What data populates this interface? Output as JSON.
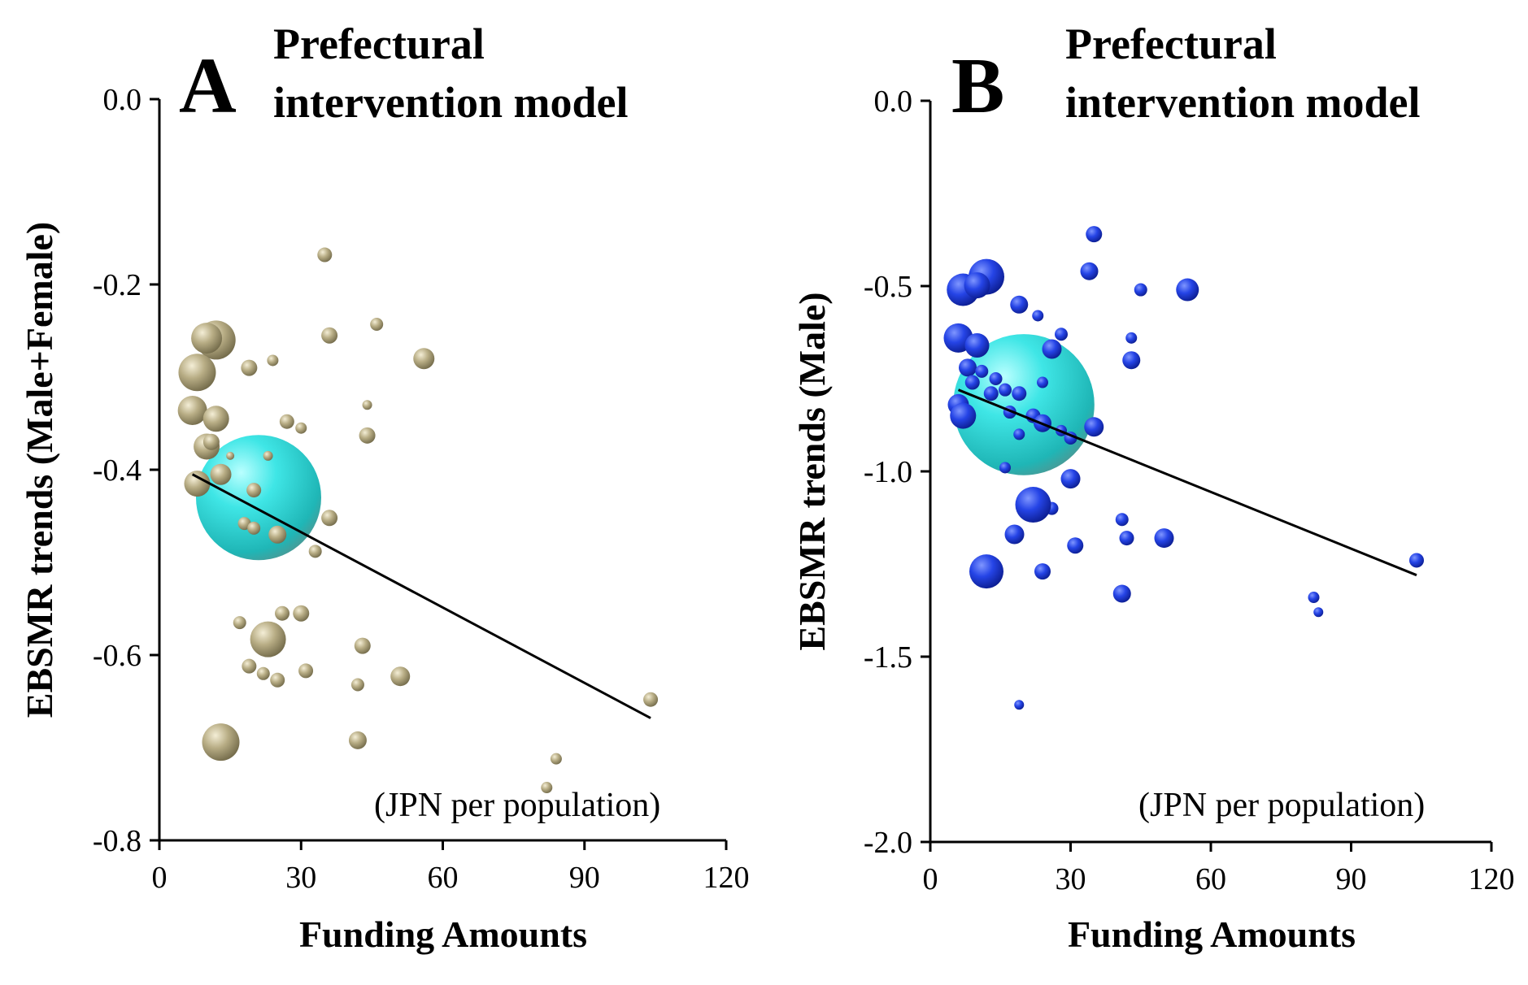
{
  "chart_data": [
    {
      "type": "scatter",
      "panel": "A",
      "title": "Prefectural intervention model",
      "title_lines": [
        "Prefectural",
        "intervention model"
      ],
      "xlabel": "Funding Amounts",
      "ylabel": "EBSMR trends (Male+Female)",
      "unit_note": "(JPN per population)",
      "xlim": [
        0,
        120
      ],
      "ylim": [
        -0.8,
        0.0
      ],
      "xticks": [
        0,
        30,
        60,
        90,
        120
      ],
      "yticks": [
        -0.8,
        -0.6,
        -0.4,
        -0.2,
        0.0
      ],
      "ytick_labels": [
        "-0.8",
        "-0.6",
        "-0.4",
        "-0.2",
        "0.0"
      ],
      "marker_color": "#b5aa82",
      "highlight_color": "#39e0e0",
      "regression": {
        "x": [
          7,
          104
        ],
        "y": [
          -0.405,
          -0.668
        ]
      },
      "highlight": {
        "x": 21,
        "y": -0.43,
        "size": 55
      },
      "points": [
        {
          "x": 12,
          "y": -0.26,
          "size": 24
        },
        {
          "x": 10,
          "y": -0.258,
          "size": 19
        },
        {
          "x": 8,
          "y": -0.295,
          "size": 23
        },
        {
          "x": 7,
          "y": -0.336,
          "size": 18
        },
        {
          "x": 12,
          "y": -0.345,
          "size": 16
        },
        {
          "x": 10,
          "y": -0.375,
          "size": 16
        },
        {
          "x": 8,
          "y": -0.415,
          "size": 16
        },
        {
          "x": 13,
          "y": -0.405,
          "size": 13
        },
        {
          "x": 11,
          "y": -0.37,
          "size": 10
        },
        {
          "x": 19,
          "y": -0.29,
          "size": 10
        },
        {
          "x": 24,
          "y": -0.282,
          "size": 7
        },
        {
          "x": 15,
          "y": -0.385,
          "size": 5
        },
        {
          "x": 23,
          "y": -0.385,
          "size": 6
        },
        {
          "x": 27,
          "y": -0.348,
          "size": 9
        },
        {
          "x": 30,
          "y": -0.355,
          "size": 7
        },
        {
          "x": 20,
          "y": -0.422,
          "size": 9
        },
        {
          "x": 18,
          "y": -0.458,
          "size": 8
        },
        {
          "x": 20,
          "y": -0.463,
          "size": 8
        },
        {
          "x": 25,
          "y": -0.47,
          "size": 11
        },
        {
          "x": 33,
          "y": -0.488,
          "size": 8
        },
        {
          "x": 36,
          "y": -0.452,
          "size": 10
        },
        {
          "x": 35,
          "y": -0.168,
          "size": 9
        },
        {
          "x": 36,
          "y": -0.255,
          "size": 10
        },
        {
          "x": 46,
          "y": -0.243,
          "size": 8
        },
        {
          "x": 56,
          "y": -0.28,
          "size": 13
        },
        {
          "x": 44,
          "y": -0.33,
          "size": 6
        },
        {
          "x": 44,
          "y": -0.363,
          "size": 10
        },
        {
          "x": 17,
          "y": -0.565,
          "size": 8
        },
        {
          "x": 23,
          "y": -0.583,
          "size": 22
        },
        {
          "x": 26,
          "y": -0.555,
          "size": 9
        },
        {
          "x": 30,
          "y": -0.555,
          "size": 10
        },
        {
          "x": 19,
          "y": -0.612,
          "size": 9
        },
        {
          "x": 22,
          "y": -0.62,
          "size": 8
        },
        {
          "x": 25,
          "y": -0.627,
          "size": 9
        },
        {
          "x": 31,
          "y": -0.617,
          "size": 9
        },
        {
          "x": 43,
          "y": -0.59,
          "size": 10
        },
        {
          "x": 42,
          "y": -0.632,
          "size": 8
        },
        {
          "x": 51,
          "y": -0.623,
          "size": 12
        },
        {
          "x": 13,
          "y": -0.694,
          "size": 23
        },
        {
          "x": 42,
          "y": -0.692,
          "size": 11
        },
        {
          "x": 104,
          "y": -0.648,
          "size": 9
        },
        {
          "x": 84,
          "y": -0.712,
          "size": 7
        },
        {
          "x": 82,
          "y": -0.743,
          "size": 7
        }
      ]
    },
    {
      "type": "scatter",
      "panel": "B",
      "title": "Prefectural intervention model",
      "title_lines": [
        "Prefectural",
        "intervention model"
      ],
      "xlabel": "Funding Amounts",
      "ylabel": "EBSMR trends (Male)",
      "unit_note": "(JPN per population)",
      "xlim": [
        0,
        120
      ],
      "ylim": [
        -2.0,
        0.0
      ],
      "xticks": [
        0,
        30,
        60,
        90,
        120
      ],
      "yticks": [
        -2.0,
        -1.5,
        -1.0,
        -0.5,
        0.0
      ],
      "ytick_labels": [
        "-2.0",
        "-1.5",
        "-1.0",
        "-0.5",
        "0.0"
      ],
      "marker_color": "#2a48e8",
      "highlight_color": "#39e0e0",
      "regression": {
        "x": [
          6,
          104
        ],
        "y": [
          -0.78,
          -1.28
        ]
      },
      "highlight": {
        "x": 20,
        "y": -0.82,
        "size": 62
      },
      "points": [
        {
          "x": 12,
          "y": -0.475,
          "size": 22
        },
        {
          "x": 7,
          "y": -0.51,
          "size": 20
        },
        {
          "x": 10,
          "y": -0.498,
          "size": 16
        },
        {
          "x": 6,
          "y": -0.64,
          "size": 18
        },
        {
          "x": 10,
          "y": -0.66,
          "size": 15
        },
        {
          "x": 8,
          "y": -0.72,
          "size": 11
        },
        {
          "x": 9,
          "y": -0.76,
          "size": 9
        },
        {
          "x": 11,
          "y": -0.73,
          "size": 8
        },
        {
          "x": 14,
          "y": -0.75,
          "size": 8
        },
        {
          "x": 6,
          "y": -0.82,
          "size": 13
        },
        {
          "x": 7,
          "y": -0.85,
          "size": 16
        },
        {
          "x": 13,
          "y": -0.79,
          "size": 9
        },
        {
          "x": 16,
          "y": -0.78,
          "size": 8
        },
        {
          "x": 19,
          "y": -0.55,
          "size": 11
        },
        {
          "x": 23,
          "y": -0.58,
          "size": 7
        },
        {
          "x": 26,
          "y": -0.67,
          "size": 12
        },
        {
          "x": 28,
          "y": -0.63,
          "size": 8
        },
        {
          "x": 24,
          "y": -0.76,
          "size": 7
        },
        {
          "x": 19,
          "y": -0.79,
          "size": 9
        },
        {
          "x": 17,
          "y": -0.84,
          "size": 8
        },
        {
          "x": 22,
          "y": -0.85,
          "size": 9
        },
        {
          "x": 24,
          "y": -0.87,
          "size": 11
        },
        {
          "x": 19,
          "y": -0.9,
          "size": 7
        },
        {
          "x": 16,
          "y": -0.99,
          "size": 7
        },
        {
          "x": 28,
          "y": -0.89,
          "size": 7
        },
        {
          "x": 30,
          "y": -0.91,
          "size": 8
        },
        {
          "x": 35,
          "y": -0.88,
          "size": 12
        },
        {
          "x": 35,
          "y": -0.36,
          "size": 10
        },
        {
          "x": 34,
          "y": -0.46,
          "size": 11
        },
        {
          "x": 45,
          "y": -0.51,
          "size": 8
        },
        {
          "x": 55,
          "y": -0.51,
          "size": 14
        },
        {
          "x": 43,
          "y": -0.64,
          "size": 7
        },
        {
          "x": 43,
          "y": -0.7,
          "size": 11
        },
        {
          "x": 30,
          "y": -1.02,
          "size": 12
        },
        {
          "x": 26,
          "y": -1.1,
          "size": 8
        },
        {
          "x": 22,
          "y": -1.09,
          "size": 22
        },
        {
          "x": 18,
          "y": -1.17,
          "size": 12
        },
        {
          "x": 31,
          "y": -1.2,
          "size": 10
        },
        {
          "x": 41,
          "y": -1.13,
          "size": 8
        },
        {
          "x": 42,
          "y": -1.18,
          "size": 9
        },
        {
          "x": 50,
          "y": -1.18,
          "size": 12
        },
        {
          "x": 12,
          "y": -1.27,
          "size": 21
        },
        {
          "x": 24,
          "y": -1.27,
          "size": 10
        },
        {
          "x": 41,
          "y": -1.33,
          "size": 11
        },
        {
          "x": 104,
          "y": -1.24,
          "size": 9
        },
        {
          "x": 82,
          "y": -1.34,
          "size": 7
        },
        {
          "x": 83,
          "y": -1.38,
          "size": 6
        },
        {
          "x": 19,
          "y": -1.63,
          "size": 6
        }
      ]
    }
  ]
}
